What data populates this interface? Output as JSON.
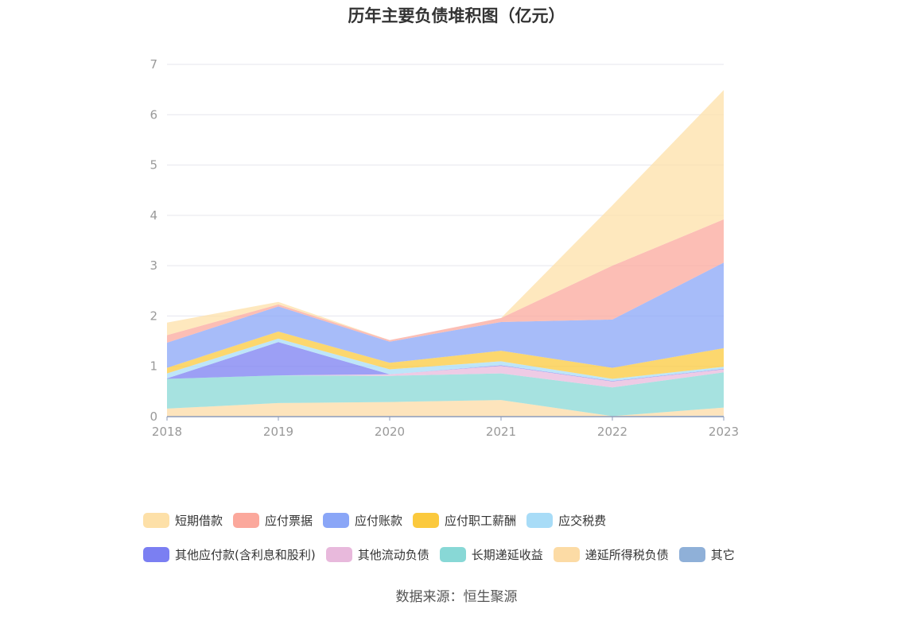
{
  "chart_data": {
    "type": "area",
    "stacked": true,
    "title": "历年主要负债堆积图（亿元）",
    "categories": [
      "2018",
      "2019",
      "2020",
      "2021",
      "2022",
      "2023"
    ],
    "ylim": [
      0,
      7
    ],
    "yticks": [
      0,
      1,
      2,
      3,
      4,
      5,
      6,
      7
    ],
    "series": [
      {
        "name": "其它",
        "color": "#8fb0d8",
        "values": [
          0.01,
          0.01,
          0.01,
          0.01,
          0.01,
          0.02
        ]
      },
      {
        "name": "递延所得税负债",
        "color": "#fcdba5",
        "values": [
          0.15,
          0.26,
          0.28,
          0.32,
          0.0,
          0.16
        ]
      },
      {
        "name": "长期递延收益",
        "color": "#88d8d6",
        "values": [
          0.59,
          0.55,
          0.52,
          0.53,
          0.57,
          0.7
        ]
      },
      {
        "name": "其他流动负债",
        "color": "#e8b9dc",
        "values": [
          0.0,
          0.0,
          0.03,
          0.15,
          0.12,
          0.06
        ]
      },
      {
        "name": "其他应付款(含利息和股利)",
        "color": "#7b7ff2",
        "values": [
          0.01,
          0.66,
          0.0,
          0.01,
          0.01,
          0.01
        ]
      },
      {
        "name": "应交税费",
        "color": "#a8dcf7",
        "values": [
          0.1,
          0.07,
          0.1,
          0.08,
          0.04,
          0.04
        ]
      },
      {
        "name": "应付职工薪酬",
        "color": "#fbc93d",
        "values": [
          0.11,
          0.14,
          0.13,
          0.21,
          0.22,
          0.37
        ]
      },
      {
        "name": "应付账款",
        "color": "#8aa6f7",
        "values": [
          0.5,
          0.5,
          0.42,
          0.57,
          0.96,
          1.7
        ]
      },
      {
        "name": "应付票据",
        "color": "#fba89c",
        "values": [
          0.15,
          0.04,
          0.03,
          0.08,
          1.07,
          0.86
        ]
      },
      {
        "name": "短期借款",
        "color": "#fde0a8",
        "values": [
          0.25,
          0.05,
          0.0,
          0.0,
          1.2,
          2.57
        ]
      }
    ],
    "legend_order": [
      "短期借款",
      "应付票据",
      "应付账款",
      "应付职工薪酬",
      "应交税费",
      "其他应付款(含利息和股利)",
      "其他流动负债",
      "长期递延收益",
      "递延所得税负债",
      "其它"
    ],
    "legend_rows": [
      [
        "短期借款",
        "应付票据",
        "应付账款",
        "应付职工薪酬",
        "应交税费"
      ],
      [
        "其他应付款(含利息和股利)",
        "其他流动负债",
        "长期递延收益",
        "递延所得税负债",
        "其它"
      ]
    ]
  },
  "source": "数据来源：恒生聚源"
}
